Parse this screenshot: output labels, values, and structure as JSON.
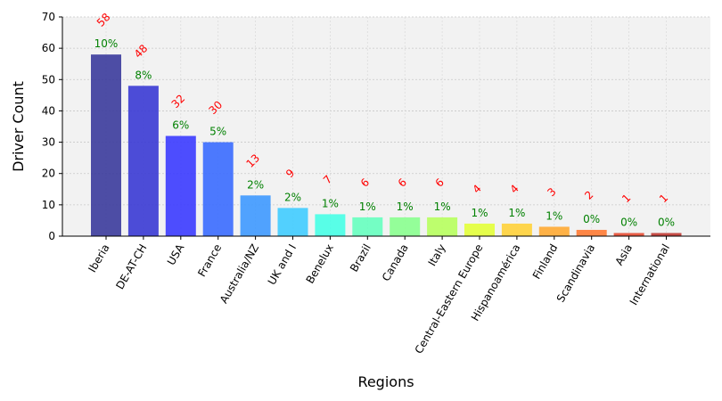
{
  "chart_data": {
    "type": "bar",
    "title": "",
    "xlabel": "Regions",
    "ylabel": "Driver Count",
    "ylim": [
      0,
      70
    ],
    "yticks": [
      0,
      10,
      20,
      30,
      40,
      50,
      60,
      70
    ],
    "grid": true,
    "categories": [
      "Iberia",
      "DE-AT-CH",
      "USA",
      "France",
      "Australia/NZ",
      "UK and I",
      "Benelux",
      "Brazil",
      "Canada",
      "Italy",
      "Central-Eastern Europe",
      "Hispanoamérica",
      "Finland",
      "Scandinavia",
      "Asia",
      "International"
    ],
    "values": [
      58,
      48,
      32,
      30,
      13,
      9,
      7,
      6,
      6,
      6,
      4,
      4,
      3,
      2,
      1,
      1
    ],
    "count_labels": [
      "58",
      "48",
      "32",
      "30",
      "13",
      "9",
      "7",
      "6",
      "6",
      "6",
      "4",
      "4",
      "3",
      "2",
      "1",
      "1"
    ],
    "percent_labels": [
      "10%",
      "8%",
      "6%",
      "5%",
      "2%",
      "2%",
      "1%",
      "1%",
      "1%",
      "1%",
      "1%",
      "1%",
      "1%",
      "0%",
      "0%",
      "0%"
    ],
    "colors": [
      "#3b3b9c",
      "#3a3ad4",
      "#3b3bff",
      "#3a6cff",
      "#3e99ff",
      "#40ccff",
      "#47ffe6",
      "#66ffbf",
      "#8aff8f",
      "#b7ff5e",
      "#e3ff3a",
      "#ffd23a",
      "#ffaa33",
      "#ff7a33",
      "#e64d33",
      "#c03a33"
    ],
    "count_label_color": "#ff0000",
    "percent_label_color": "#008000",
    "plot_background": "#f2f2f2"
  }
}
